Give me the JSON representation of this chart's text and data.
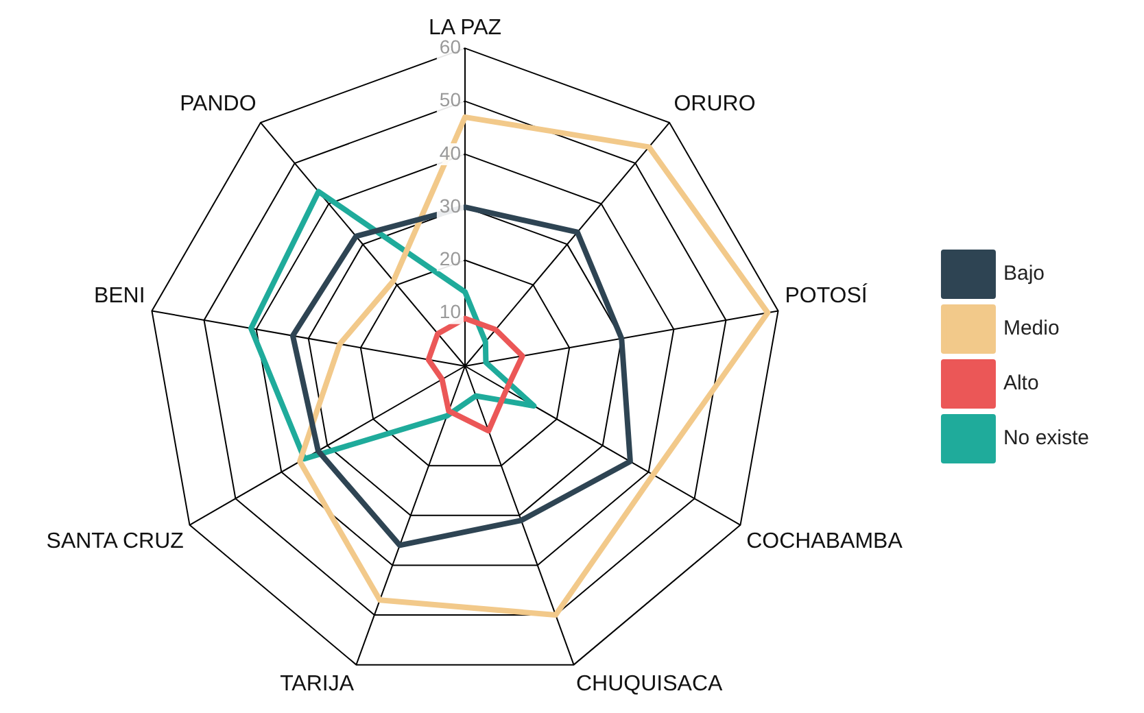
{
  "chart_data": {
    "type": "radar",
    "categories": [
      "LA PAZ",
      "ORURO",
      "POTOSÍ",
      "COCHABAMBA",
      "CHUQUISACA",
      "TARIJA",
      "SANTA CRUZ",
      "BENI",
      "PANDO"
    ],
    "series": [
      {
        "name": "Bajo",
        "color": "#2e4453",
        "values": [
          30,
          33,
          30,
          36,
          31,
          36,
          32,
          33,
          32
        ]
      },
      {
        "name": "Medio",
        "color": "#f2c98a",
        "values": [
          47,
          54,
          58,
          41,
          50,
          47,
          36,
          24,
          21
        ]
      },
      {
        "name": "Alto",
        "color": "#eb5757",
        "values": [
          9,
          9,
          11,
          9,
          13,
          9,
          5,
          7,
          8
        ]
      },
      {
        "name": "No existe",
        "color": "#1fab9b",
        "values": [
          14,
          6,
          4,
          15,
          6,
          10,
          35,
          41,
          43
        ]
      }
    ],
    "ylim": [
      0,
      60
    ],
    "yticks": [
      10,
      20,
      30,
      40,
      50,
      60
    ],
    "legend": "right",
    "grid": true,
    "marker": "none",
    "line_style": "solid"
  }
}
